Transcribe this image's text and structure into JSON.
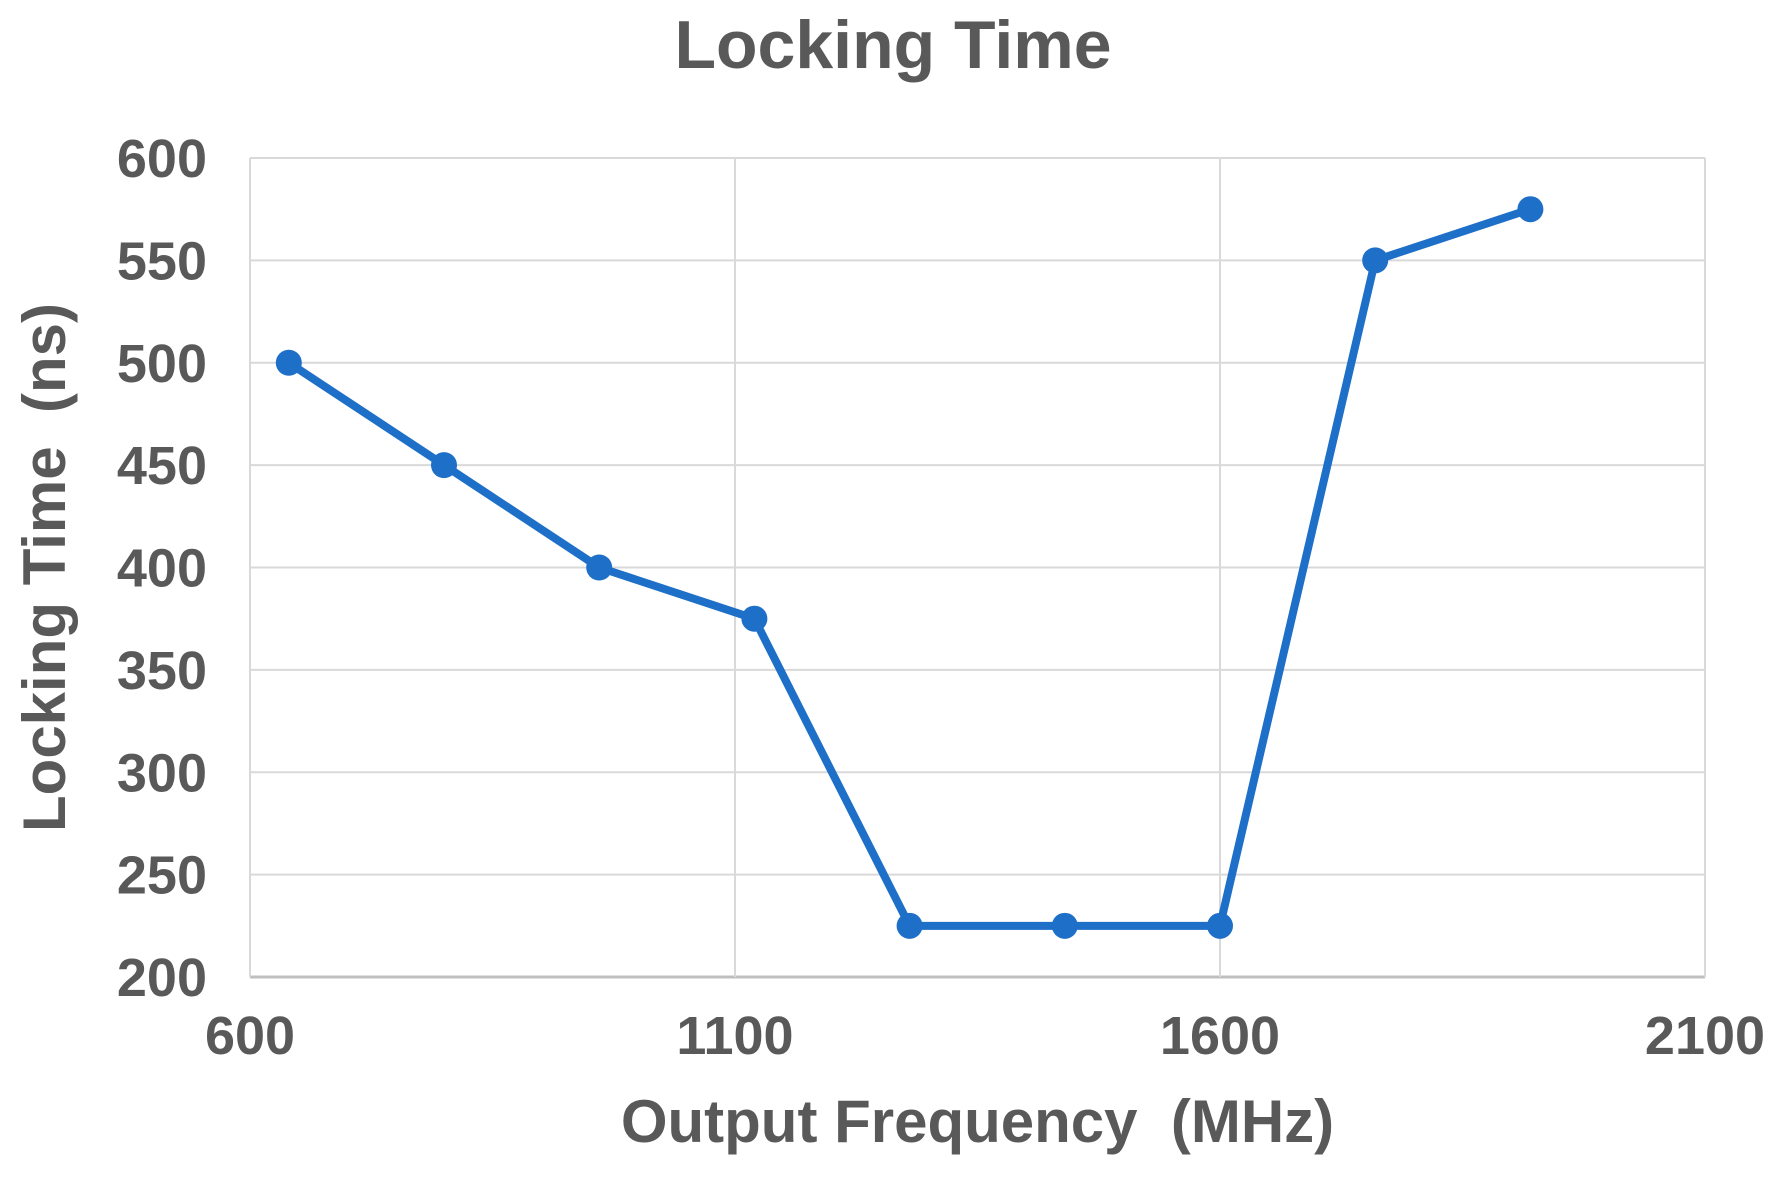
{
  "chart_data": {
    "type": "line",
    "title": "Locking Time",
    "xlabel": "Output Frequency  (MHz)",
    "ylabel": "Locking Time  (ns)",
    "x": [
      640,
      800,
      960,
      1120,
      1280,
      1440,
      1600,
      1760,
      1920
    ],
    "values": [
      500,
      450,
      400,
      375,
      225,
      225,
      225,
      550,
      575
    ],
    "xlim": [
      600,
      2100
    ],
    "ylim": [
      200,
      600
    ],
    "x_ticks": [
      600,
      1100,
      1600,
      2100
    ],
    "y_ticks": [
      200,
      250,
      300,
      350,
      400,
      450,
      500,
      550,
      600
    ],
    "grid": true,
    "legend": false,
    "marker": "circle",
    "colors": {
      "line": "#1E6FC8",
      "marker": "#1E6FC8",
      "text": "#595959",
      "gridline": "#D9D9D9",
      "axis_line": "#BFBFBF",
      "background": "#FFFFFF"
    }
  }
}
